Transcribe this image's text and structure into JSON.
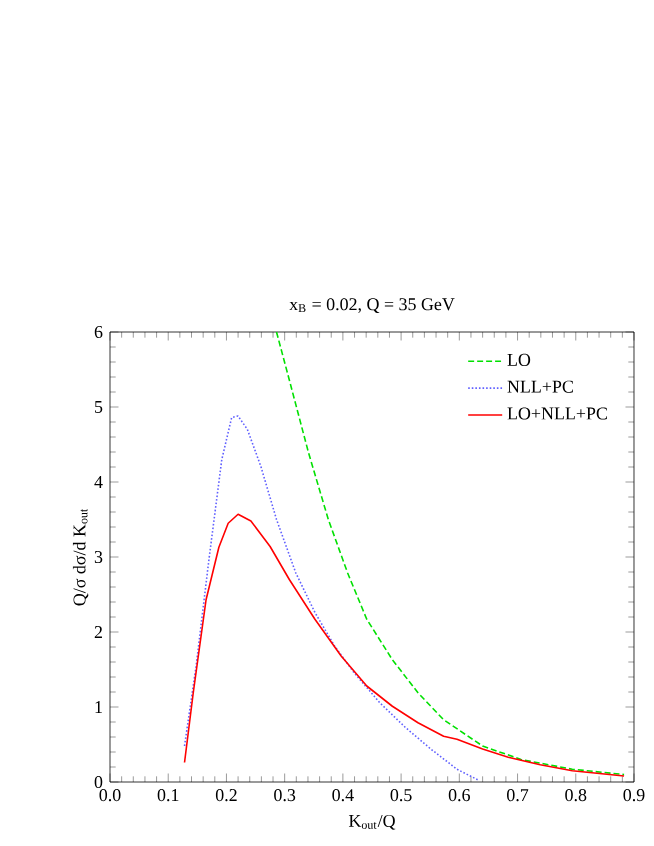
{
  "chart_data": {
    "type": "line",
    "title": "x$_{B}$ = 0.02, Q = 35 GeV",
    "xlabel": "K$_{out}$/Q",
    "ylabel": "Q/σ  dσ/d K$_{out}$",
    "xlim": [
      0,
      0.9
    ],
    "xticks": [
      {
        "value": 0,
        "label": "0.0"
      },
      0.1,
      0.2,
      0.3,
      0.4,
      0.5,
      0.6,
      0.7,
      0.8,
      0.9
    ],
    "ylim": [
      0,
      6
    ],
    "yticks": [
      0,
      1,
      2,
      3,
      4,
      5,
      6
    ],
    "grid": false,
    "legend": "top right",
    "marker": "none",
    "series": [
      {
        "name": "LO",
        "color": "#00e000",
        "line_style": "dashed",
        "x": [
          0.286,
          0.308,
          0.341,
          0.375,
          0.408,
          0.441,
          0.485,
          0.529,
          0.573,
          0.64,
          0.706,
          0.794,
          0.883
        ],
        "values": [
          6,
          5.36,
          4.39,
          3.5,
          2.79,
          2.17,
          1.63,
          1.19,
          0.83,
          0.48,
          0.3,
          0.17,
          0.1
        ]
      },
      {
        "name": "NLL+PC",
        "color": "#6060ff",
        "line_style": "dotted",
        "x": [
          0.128,
          0.148,
          0.17,
          0.192,
          0.209,
          0.22,
          0.236,
          0.259,
          0.286,
          0.319,
          0.352,
          0.386,
          0.419,
          0.463,
          0.507,
          0.551,
          0.596,
          0.634
        ],
        "values": [
          0.48,
          1.55,
          2.97,
          4.3,
          4.86,
          4.88,
          4.7,
          4.21,
          3.5,
          2.79,
          2.26,
          1.81,
          1.46,
          1.06,
          0.73,
          0.44,
          0.17,
          0.02
        ]
      },
      {
        "name": "LO+NLL+PC",
        "color": "#ff0000",
        "line_style": "solid",
        "x": [
          0.128,
          0.143,
          0.165,
          0.187,
          0.203,
          0.22,
          0.242,
          0.275,
          0.308,
          0.352,
          0.397,
          0.441,
          0.485,
          0.529,
          0.573,
          0.596,
          0.64,
          0.684,
          0.739,
          0.794,
          0.883
        ],
        "values": [
          0.26,
          1.19,
          2.43,
          3.13,
          3.45,
          3.57,
          3.48,
          3.14,
          2.7,
          2.17,
          1.68,
          1.28,
          1.01,
          0.79,
          0.61,
          0.57,
          0.44,
          0.33,
          0.23,
          0.15,
          0.08
        ]
      }
    ]
  }
}
